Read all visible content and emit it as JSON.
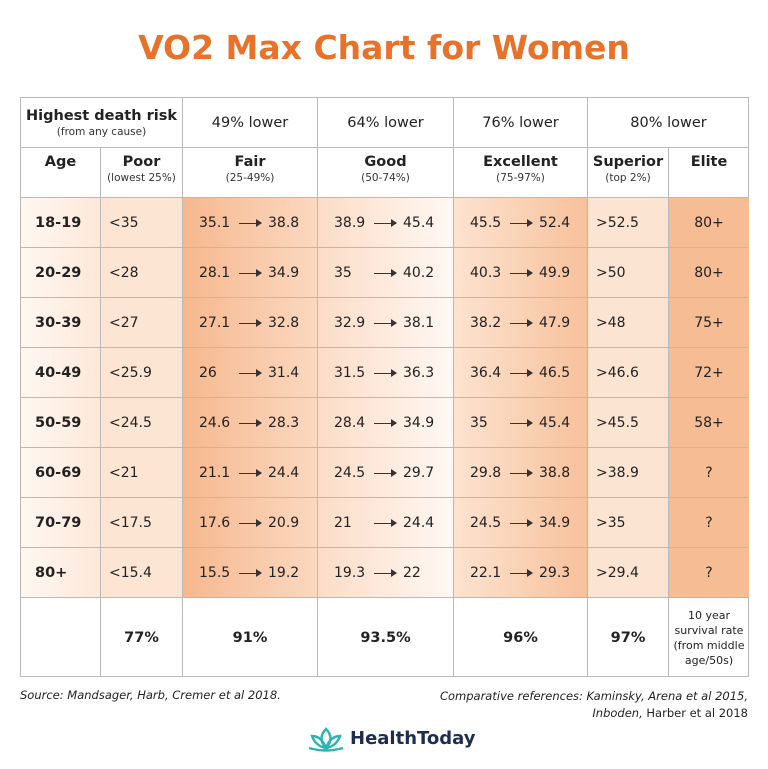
{
  "title": "VO2 Max Chart for Women",
  "header": {
    "risk_title": "Highest death risk",
    "risk_sub": "(from any cause)",
    "groups": [
      "49% lower",
      "64% lower",
      "76% lower",
      "80% lower"
    ]
  },
  "columns": [
    {
      "name": "Age"
    },
    {
      "name": "Poor",
      "sub": "(lowest 25%)"
    },
    {
      "name": "Fair",
      "sub": "(25-49%)"
    },
    {
      "name": "Good",
      "sub": "(50-74%)"
    },
    {
      "name": "Excellent",
      "sub": "(75-97%)"
    },
    {
      "name": "Superior",
      "sub": "(top 2%)"
    },
    {
      "name": "Elite"
    }
  ],
  "rows": [
    [
      "18-19",
      "<35",
      [
        "35.1",
        "38.8"
      ],
      [
        "38.9",
        "45.4"
      ],
      [
        "45.5",
        "52.4"
      ],
      ">52.5",
      "80+"
    ],
    [
      "20-29",
      "<28",
      [
        "28.1",
        "34.9"
      ],
      [
        "35",
        "40.2"
      ],
      [
        "40.3",
        "49.9"
      ],
      ">50",
      "80+"
    ],
    [
      "30-39",
      "<27",
      [
        "27.1",
        "32.8"
      ],
      [
        "32.9",
        "38.1"
      ],
      [
        "38.2",
        "47.9"
      ],
      ">48",
      "75+"
    ],
    [
      "40-49",
      "<25.9",
      [
        "26",
        "31.4"
      ],
      [
        "31.5",
        "36.3"
      ],
      [
        "36.4",
        "46.5"
      ],
      ">46.6",
      "72+"
    ],
    [
      "50-59",
      "<24.5",
      [
        "24.6",
        "28.3"
      ],
      [
        "28.4",
        "34.9"
      ],
      [
        "35",
        "45.4"
      ],
      ">45.5",
      "58+"
    ],
    [
      "60-69",
      "<21",
      [
        "21.1",
        "24.4"
      ],
      [
        "24.5",
        "29.7"
      ],
      [
        "29.8",
        "38.8"
      ],
      ">38.9",
      "?"
    ],
    [
      "70-79",
      "<17.5",
      [
        "17.6",
        "20.9"
      ],
      [
        "21",
        "24.4"
      ],
      [
        "24.5",
        "34.9"
      ],
      ">35",
      "?"
    ],
    [
      "80+",
      "<15.4",
      [
        "15.5",
        "19.2"
      ],
      [
        "19.3",
        "22"
      ],
      [
        "22.1",
        "29.3"
      ],
      ">29.4",
      "?"
    ]
  ],
  "survival": {
    "values": [
      "77%",
      "91%",
      "93.5%",
      "96%",
      "97%"
    ],
    "label": "10 year survival rate (from middle age/50s)"
  },
  "source": "Source: Mandsager, Harb, Cremer et al 2018.",
  "references": [
    "Comparative references: Kaminsky, Arena et al 2015,",
    "Inboden,",
    "Harber et al 2018"
  ],
  "brand": "HealthToday"
}
